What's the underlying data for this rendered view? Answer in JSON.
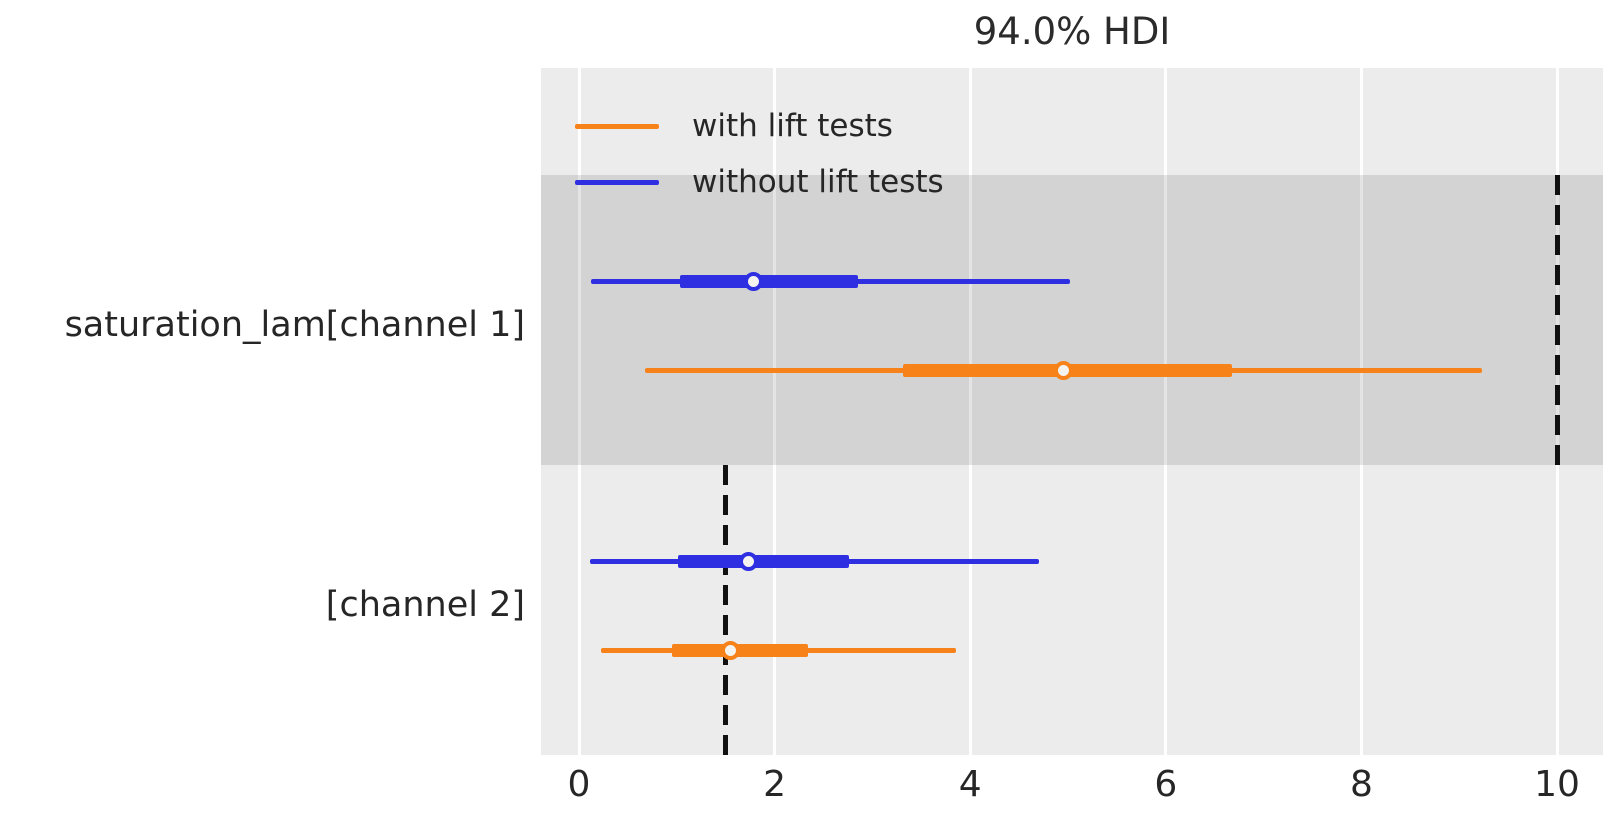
{
  "chart_data": {
    "type": "forest",
    "title": "94.0% HDI",
    "hdi_prob_label": "94.0%",
    "background_color": "#ececec",
    "shaded_band_color": "rgba(0,0,0,0.105)",
    "gridline_color": "#ffffff",
    "text_color": "#262626",
    "legend": [
      {
        "label": "with lift tests",
        "color": "#f8821a"
      },
      {
        "label": "without lift tests",
        "color": "#2f2fe2"
      }
    ],
    "x_axis": {
      "ticks": [
        0,
        2,
        4,
        6,
        8,
        10
      ],
      "tick_labels": [
        "0",
        "2",
        "4",
        "6",
        "8",
        "10"
      ],
      "range": [
        -0.39,
        10.47
      ],
      "grid": true
    },
    "groups": [
      {
        "label": "saturation_lam[channel 1]",
        "shaded": true,
        "reference_value": 10.0,
        "series": [
          {
            "name": "without lift tests",
            "color": "#2f2fe2",
            "hdi_94": [
              0.12,
              5.02
            ],
            "hdi_thick": [
              1.03,
              2.85
            ],
            "median": 1.78
          },
          {
            "name": "with lift tests",
            "color": "#f8821a",
            "hdi_94": [
              0.67,
              9.23
            ],
            "hdi_thick": [
              3.31,
              6.68
            ],
            "median": 4.95
          }
        ]
      },
      {
        "label": "[channel 2]",
        "shaded": false,
        "reference_value": 1.5,
        "series": [
          {
            "name": "without lift tests",
            "color": "#2f2fe2",
            "hdi_94": [
              0.11,
              4.7
            ],
            "hdi_thick": [
              1.01,
              2.76
            ],
            "median": 1.73
          },
          {
            "name": "with lift tests",
            "color": "#f8821a",
            "hdi_94": [
              0.23,
              3.85
            ],
            "hdi_thick": [
              0.95,
              2.34
            ],
            "median": 1.55
          }
        ]
      }
    ]
  }
}
